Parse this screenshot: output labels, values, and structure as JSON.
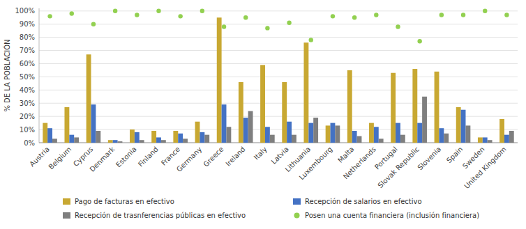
{
  "chart_data": {
    "type": "bar",
    "ylabel": "% DE LA POBLACIÓN",
    "categories": [
      "Austria",
      "Belgium",
      "Cyprus",
      "Denmark",
      "Estonia",
      "Finland",
      "France",
      "Germany",
      "Greece",
      "Ireland",
      "Italy",
      "Latvia",
      "Lithuania",
      "Luxembourg",
      "Malta",
      "Netherlands",
      "Portugal",
      "Slovak Republic",
      "Slovenia",
      "Spain",
      "Sweden",
      "United Kingdom"
    ],
    "series": [
      {
        "name": "Pago de facturas en efectivo",
        "color": "#c8a832",
        "type": "bar",
        "values": [
          15,
          27,
          67,
          2,
          10,
          9,
          9,
          16,
          95,
          46,
          59,
          46,
          76,
          13,
          55,
          15,
          53,
          56,
          54,
          27,
          4,
          18
        ]
      },
      {
        "name": "Recepción de salarios en efectivo",
        "color": "#4472c4",
        "type": "bar",
        "values": [
          11,
          6,
          29,
          2,
          8,
          4,
          7,
          8,
          29,
          19,
          12,
          16,
          15,
          15,
          9,
          12,
          15,
          15,
          11,
          25,
          4,
          6
        ]
      },
      {
        "name": "Recepción de trasnferencias públicas en efectivo",
        "color": "#7f7f7f",
        "type": "bar",
        "values": [
          3,
          4,
          9,
          1,
          2,
          2,
          3,
          6,
          12,
          24,
          6,
          6,
          19,
          13,
          5,
          3,
          6,
          35,
          7,
          13,
          2,
          9
        ]
      },
      {
        "name": "Posen una cuenta financiera (inclusión financiera)",
        "color": "#92d050",
        "type": "scatter",
        "marker": "circle",
        "values": [
          96,
          98,
          90,
          100,
          97,
          100,
          96,
          100,
          88,
          95,
          87,
          91,
          78,
          96,
          95,
          97,
          88,
          77,
          97,
          97,
          100,
          97
        ]
      }
    ],
    "ylim": [
      0,
      102
    ],
    "yticks": [
      {
        "value": 0,
        "label": "0%"
      },
      {
        "value": 10,
        "label": "10%"
      },
      {
        "value": 20,
        "label": "20%"
      },
      {
        "value": 30,
        "label": "30%"
      },
      {
        "value": 40,
        "label": "40%"
      },
      {
        "value": 50,
        "label": "50%"
      },
      {
        "value": 60,
        "label": "60%"
      },
      {
        "value": 70,
        "label": "70%"
      },
      {
        "value": 80,
        "label": "80%"
      },
      {
        "value": 90,
        "label": "90%"
      },
      {
        "value": 100,
        "label": "100%"
      }
    ],
    "grid": true,
    "legend": "bottom"
  }
}
